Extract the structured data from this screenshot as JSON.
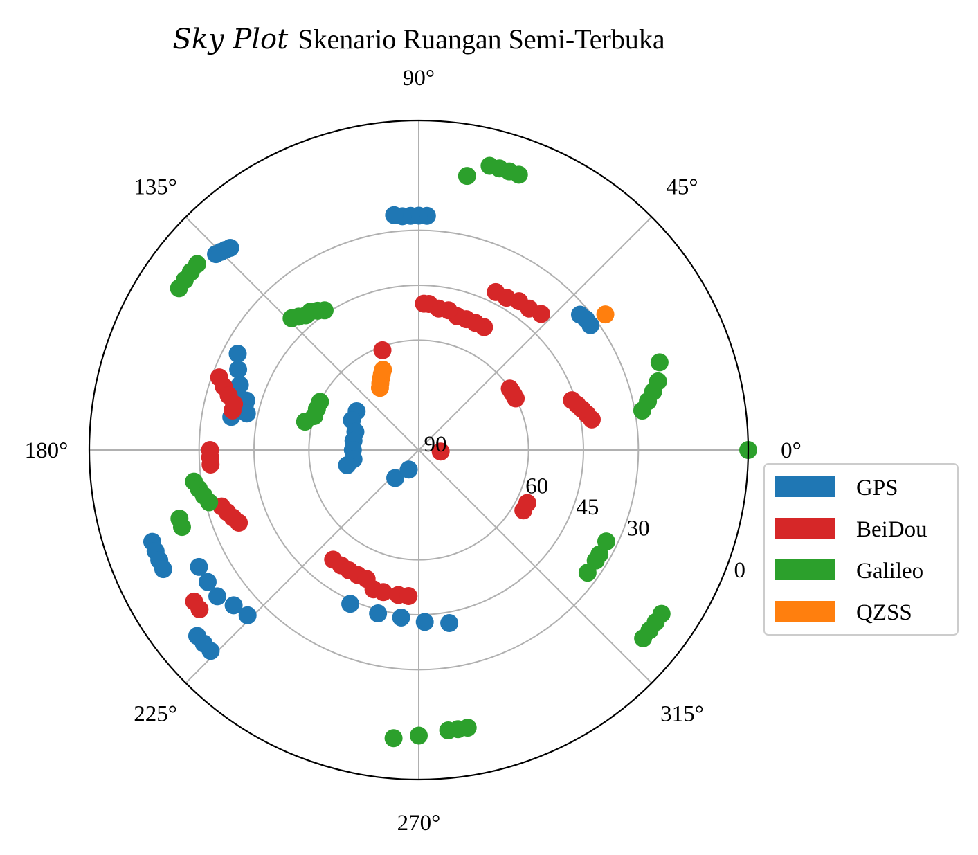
{
  "chart_data": {
    "type": "scatter",
    "projection": "polar",
    "title_italic": "Sky Plot",
    "title_rest": "Skenario Ruangan Semi-Terbuka",
    "theta_unit": "degrees (azimuth, counter-clockwise from east)",
    "r_unit": "elevation (degrees), 90 at center, 0 at edge",
    "r_range": [
      90,
      0
    ],
    "theta_ticks": [
      "0°",
      "45°",
      "90°",
      "135°",
      "180°",
      "225°",
      "270°",
      "315°"
    ],
    "r_ticks": [
      "90",
      "60",
      "45",
      "30",
      "0"
    ],
    "r_tick_values": [
      90,
      60,
      45,
      30,
      0
    ],
    "grid": true,
    "legend_position": "right",
    "series": [
      {
        "name": "GPS",
        "color": "#1f77b4",
        "points": [
          [
            88,
            26
          ],
          [
            90,
            26
          ],
          [
            92,
            26
          ],
          [
            94,
            26
          ],
          [
            96,
            25.5
          ],
          [
            36,
            32
          ],
          [
            38,
            32
          ],
          [
            40,
            32.5
          ],
          [
            136,
            13
          ],
          [
            135,
            13.5
          ],
          [
            134,
            14
          ],
          [
            133,
            14.5
          ],
          [
            152,
            34
          ],
          [
            156,
            36
          ],
          [
            160,
            38
          ],
          [
            164,
            38
          ],
          [
            168,
            38
          ],
          [
            170,
            38
          ],
          [
            164,
            41
          ],
          [
            166,
            41
          ],
          [
            168,
            42
          ],
          [
            148,
            70
          ],
          [
            156,
            70
          ],
          [
            164,
            72
          ],
          [
            172,
            72
          ],
          [
            180,
            72
          ],
          [
            188,
            72
          ],
          [
            192,
            70
          ],
          [
            246,
            44
          ],
          [
            256,
            44
          ],
          [
            264,
            44
          ],
          [
            272,
            43
          ],
          [
            280,
            42
          ],
          [
            208,
            22
          ],
          [
            212,
            22
          ],
          [
            216,
            22
          ],
          [
            220,
            24
          ],
          [
            224,
            25
          ],
          [
            199,
            13
          ],
          [
            201,
            13
          ],
          [
            203,
            13
          ],
          [
            205,
            13
          ],
          [
            220,
            11
          ],
          [
            222,
            11
          ],
          [
            224,
            11
          ],
          [
            230,
            80
          ],
          [
            243,
            84
          ]
        ]
      },
      {
        "name": "BeiDou",
        "color": "#d62728",
        "points": [
          [
            48,
            40
          ],
          [
            52,
            41
          ],
          [
            56,
            41
          ],
          [
            60,
            42
          ],
          [
            64,
            42
          ],
          [
            62,
            52
          ],
          [
            66,
            52
          ],
          [
            70,
            52
          ],
          [
            74,
            52
          ],
          [
            78,
            51
          ],
          [
            82,
            51
          ],
          [
            86,
            50
          ],
          [
            88,
            50
          ],
          [
            28,
            60
          ],
          [
            30,
            60
          ],
          [
            32,
            60
          ],
          [
            34,
            60
          ],
          [
            10,
            42
          ],
          [
            12,
            43
          ],
          [
            14,
            44
          ],
          [
            16,
            45
          ],
          [
            18,
            46
          ],
          [
            356,
            84
          ],
          [
            160,
            32
          ],
          [
            162,
            34
          ],
          [
            164,
            36
          ],
          [
            166,
            38
          ],
          [
            168,
            38
          ],
          [
            180,
            33
          ],
          [
            182,
            33
          ],
          [
            184,
            33
          ],
          [
            196,
            34
          ],
          [
            198,
            35
          ],
          [
            200,
            36
          ],
          [
            202,
            37
          ],
          [
            232,
            52
          ],
          [
            236,
            52
          ],
          [
            240,
            52
          ],
          [
            244,
            52
          ],
          [
            248,
            52
          ],
          [
            252,
            50
          ],
          [
            256,
            50
          ],
          [
            262,
            50
          ],
          [
            266,
            50
          ],
          [
            330,
            57
          ],
          [
            334,
            57
          ],
          [
            214,
            16
          ],
          [
            216,
            16
          ],
          [
            110,
            61
          ]
        ]
      },
      {
        "name": "Galileo",
        "color": "#2ca02c",
        "points": [
          [
            80,
            14
          ],
          [
            70,
            10
          ],
          [
            72,
            10
          ],
          [
            74,
            10
          ],
          [
            76,
            10
          ],
          [
            20,
            20
          ],
          [
            16,
            22
          ],
          [
            14,
            24
          ],
          [
            12,
            26
          ],
          [
            10,
            28
          ],
          [
            0,
            0
          ],
          [
            140,
            11
          ],
          [
            142,
            11
          ],
          [
            144,
            11
          ],
          [
            146,
            11
          ],
          [
            124,
            44
          ],
          [
            126,
            43
          ],
          [
            128,
            42
          ],
          [
            130,
            42
          ],
          [
            132,
            41
          ],
          [
            134,
            40
          ],
          [
            154,
            60
          ],
          [
            158,
            60
          ],
          [
            162,
            60
          ],
          [
            166,
            58
          ],
          [
            188,
            28
          ],
          [
            190,
            29
          ],
          [
            192,
            30
          ],
          [
            194,
            31
          ],
          [
            196,
            22
          ],
          [
            198,
            22
          ],
          [
            324,
            33
          ],
          [
            328,
            33
          ],
          [
            330,
            33
          ],
          [
            334,
            33
          ],
          [
            320,
            10
          ],
          [
            322,
            10
          ],
          [
            324,
            10
          ],
          [
            326,
            10
          ],
          [
            265,
            11
          ],
          [
            270,
            12
          ],
          [
            276,
            13
          ],
          [
            278,
            13
          ],
          [
            280,
            13
          ]
        ]
      },
      {
        "name": "QZSS",
        "color": "#ff7f0e",
        "points": [
          [
            122,
            70
          ],
          [
            120,
            69
          ],
          [
            118,
            68
          ],
          [
            116,
            67
          ],
          [
            114,
            66
          ],
          [
            36,
            27
          ]
        ]
      }
    ]
  }
}
